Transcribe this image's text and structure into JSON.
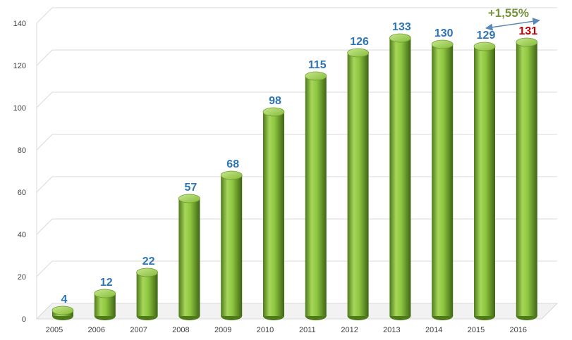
{
  "chart_data": {
    "type": "bar",
    "style": "3d-cylinder",
    "categories": [
      "2005",
      "2006",
      "2007",
      "2008",
      "2009",
      "2010",
      "2011",
      "2012",
      "2013",
      "2014",
      "2015",
      "2016"
    ],
    "values": [
      4,
      12,
      22,
      57,
      68,
      98,
      115,
      126,
      133,
      130,
      129,
      131
    ],
    "data_labels": [
      "4",
      "12",
      "22",
      "57",
      "68",
      "98",
      "115",
      "126",
      "133",
      "130",
      "129",
      "131"
    ],
    "ylim": [
      0,
      140
    ],
    "y_ticks": [
      "0",
      "20",
      "40",
      "60",
      "80",
      "100",
      "120",
      "140"
    ],
    "grid": true,
    "legend": "none",
    "title": "",
    "xlabel": "",
    "ylabel": "",
    "annotation": {
      "text": "+1,55%",
      "from_category": "2015",
      "to_category": "2016"
    },
    "colors": {
      "bar": "#8dc63f",
      "bar_dark": "#4e7a1a",
      "label": "#2e75b6",
      "highlight_label": "#c00000",
      "annotation_text": "#76923c",
      "annotation_arrow": "#5b8ab8",
      "grid": "#d9d9d9"
    },
    "highlight_category": "2016"
  }
}
